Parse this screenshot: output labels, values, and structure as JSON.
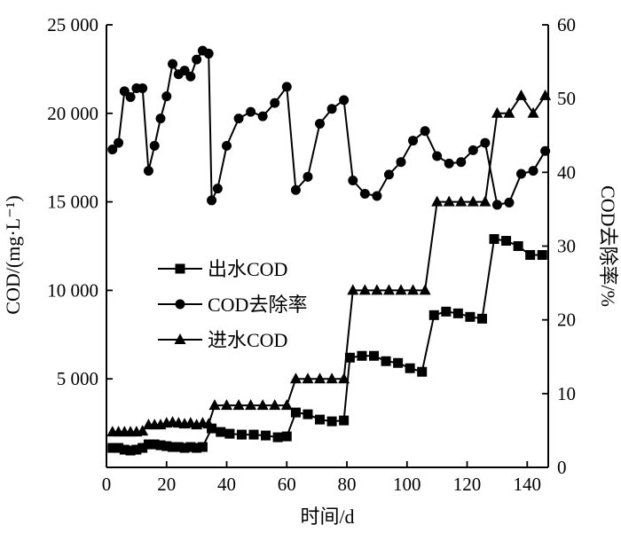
{
  "chart_data": {
    "type": "line",
    "x_axis": {
      "label": "时间/d",
      "min": 0,
      "max": 150,
      "ticks": [
        "0",
        "20",
        "40",
        "60",
        "80",
        "100",
        "120",
        "140"
      ],
      "tick_values": [
        0,
        20,
        40,
        60,
        80,
        100,
        120,
        140
      ]
    },
    "y_left": {
      "label": "COD/(mg·L⁻¹)",
      "min": 0,
      "max": 25000,
      "ticks": [
        "5 000",
        "10 000",
        "15 000",
        "20 000",
        "25 000"
      ],
      "tick_values": [
        5000,
        10000,
        15000,
        20000,
        25000
      ]
    },
    "y_right": {
      "label": "COD去除率/%",
      "min": 0,
      "max": 60,
      "ticks": [
        "0",
        "10",
        "20",
        "30",
        "40",
        "50",
        "60"
      ],
      "tick_values": [
        0,
        10,
        20,
        30,
        40,
        50,
        60
      ]
    },
    "legend_position": "center-left",
    "series": [
      {
        "name": "出水COD",
        "marker": "square",
        "axis": "left",
        "points": [
          [
            2,
            1100
          ],
          [
            4,
            1100
          ],
          [
            6,
            1000
          ],
          [
            8,
            950
          ],
          [
            10,
            1000
          ],
          [
            12,
            1100
          ],
          [
            14,
            1300
          ],
          [
            16,
            1300
          ],
          [
            18,
            1250
          ],
          [
            20,
            1200
          ],
          [
            22,
            1150
          ],
          [
            24,
            1150
          ],
          [
            26,
            1100
          ],
          [
            28,
            1150
          ],
          [
            30,
            1100
          ],
          [
            32,
            1150
          ],
          [
            35,
            2200
          ],
          [
            38,
            2000
          ],
          [
            41,
            1900
          ],
          [
            45,
            1850
          ],
          [
            49,
            1850
          ],
          [
            53,
            1800
          ],
          [
            57,
            1700
          ],
          [
            60,
            1750
          ],
          [
            63,
            3100
          ],
          [
            67,
            3000
          ],
          [
            71,
            2700
          ],
          [
            75,
            2600
          ],
          [
            79,
            2650
          ],
          [
            81,
            6200
          ],
          [
            85,
            6300
          ],
          [
            89,
            6300
          ],
          [
            93,
            6000
          ],
          [
            97,
            5900
          ],
          [
            101,
            5600
          ],
          [
            105,
            5400
          ],
          [
            109,
            8600
          ],
          [
            113,
            8800
          ],
          [
            117,
            8700
          ],
          [
            121,
            8500
          ],
          [
            125,
            8400
          ],
          [
            129,
            12900
          ],
          [
            133,
            12800
          ],
          [
            137,
            12500
          ],
          [
            141,
            12000
          ],
          [
            145,
            12000
          ]
        ]
      },
      {
        "name": "COD去除率",
        "marker": "circle",
        "axis": "right",
        "points": [
          [
            2,
            43.1
          ],
          [
            4,
            44
          ],
          [
            6,
            51
          ],
          [
            8,
            50.2
          ],
          [
            10,
            51.4
          ],
          [
            12,
            51.4
          ],
          [
            14,
            40.2
          ],
          [
            16,
            43.6
          ],
          [
            18,
            47.3
          ],
          [
            20,
            50.3
          ],
          [
            22,
            54.7
          ],
          [
            24,
            53.3
          ],
          [
            26,
            53.8
          ],
          [
            28,
            53
          ],
          [
            30,
            55.3
          ],
          [
            32,
            56.5
          ],
          [
            34,
            56.1
          ],
          [
            35,
            36.2
          ],
          [
            37,
            37.8
          ],
          [
            40,
            43.6
          ],
          [
            44,
            47.3
          ],
          [
            48,
            48.2
          ],
          [
            52,
            47.6
          ],
          [
            56,
            49.4
          ],
          [
            60,
            51.6
          ],
          [
            63,
            37.6
          ],
          [
            67,
            39.4
          ],
          [
            71,
            46.6
          ],
          [
            75,
            48.6
          ],
          [
            79,
            49.8
          ],
          [
            82,
            38.9
          ],
          [
            86,
            37.1
          ],
          [
            90,
            36.8
          ],
          [
            94,
            39.7
          ],
          [
            98,
            41.4
          ],
          [
            102,
            44.3
          ],
          [
            106,
            45.6
          ],
          [
            110,
            42.2
          ],
          [
            114,
            41.2
          ],
          [
            118,
            41.4
          ],
          [
            122,
            43
          ],
          [
            126,
            44
          ],
          [
            130,
            35.6
          ],
          [
            134,
            35.9
          ],
          [
            138,
            39.8
          ],
          [
            142,
            40.2
          ],
          [
            146,
            42.9
          ]
        ]
      },
      {
        "name": "进水COD",
        "marker": "triangle",
        "axis": "left",
        "points": [
          [
            2,
            2000
          ],
          [
            4,
            2000
          ],
          [
            6,
            2000
          ],
          [
            8,
            2000
          ],
          [
            10,
            2000
          ],
          [
            12,
            2050
          ],
          [
            14,
            2400
          ],
          [
            16,
            2400
          ],
          [
            18,
            2400
          ],
          [
            20,
            2500
          ],
          [
            22,
            2550
          ],
          [
            24,
            2500
          ],
          [
            26,
            2450
          ],
          [
            28,
            2500
          ],
          [
            30,
            2400
          ],
          [
            32,
            2500
          ],
          [
            34,
            2450
          ],
          [
            36,
            3500
          ],
          [
            40,
            3500
          ],
          [
            44,
            3500
          ],
          [
            48,
            3500
          ],
          [
            52,
            3500
          ],
          [
            56,
            3500
          ],
          [
            60,
            3500
          ],
          [
            63,
            5000
          ],
          [
            67,
            5000
          ],
          [
            71,
            5000
          ],
          [
            75,
            5000
          ],
          [
            79,
            5000
          ],
          [
            82,
            10000
          ],
          [
            86,
            10000
          ],
          [
            90,
            10000
          ],
          [
            94,
            10000
          ],
          [
            98,
            10000
          ],
          [
            102,
            10000
          ],
          [
            106,
            10000
          ],
          [
            110,
            15000
          ],
          [
            114,
            15000
          ],
          [
            118,
            15000
          ],
          [
            122,
            15000
          ],
          [
            126,
            15000
          ],
          [
            130,
            20000
          ],
          [
            134,
            20000
          ],
          [
            138,
            21000
          ],
          [
            142,
            20000
          ],
          [
            146,
            21000
          ]
        ]
      }
    ]
  }
}
